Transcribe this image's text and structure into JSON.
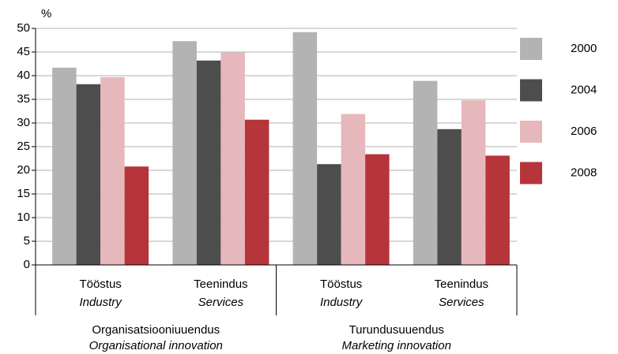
{
  "chart_data": {
    "type": "bar",
    "ylabel": "%",
    "categories": [
      {
        "label": "Tööstus",
        "label_en": "Industry"
      },
      {
        "label": "Teenindus",
        "label_en": "Services"
      },
      {
        "label": "Tööstus",
        "label_en": "Industry"
      },
      {
        "label": "Teenindus",
        "label_en": "Services"
      }
    ],
    "groups": [
      {
        "label": "Organisatsiooniuuendus",
        "label_en": "Organisational innovation"
      },
      {
        "label": "Turundusuuendus",
        "label_en": "Marketing innovation"
      }
    ],
    "series": [
      {
        "name": "2000",
        "color": "#b3b3b3",
        "values": [
          41.7,
          47.3,
          49.2,
          38.9
        ]
      },
      {
        "name": "2004",
        "color": "#4d4d4d",
        "values": [
          38.2,
          43.2,
          21.3,
          28.7
        ]
      },
      {
        "name": "2006",
        "color": "#e6b8bb",
        "values": [
          39.7,
          44.9,
          31.9,
          34.8
        ]
      },
      {
        "name": "2008",
        "color": "#b5353a",
        "values": [
          20.8,
          30.7,
          23.4,
          23.1
        ]
      }
    ],
    "ylim": [
      0,
      50
    ],
    "yticks": [
      0,
      5,
      10,
      15,
      20,
      25,
      30,
      35,
      40,
      45,
      50
    ],
    "grid": true
  }
}
